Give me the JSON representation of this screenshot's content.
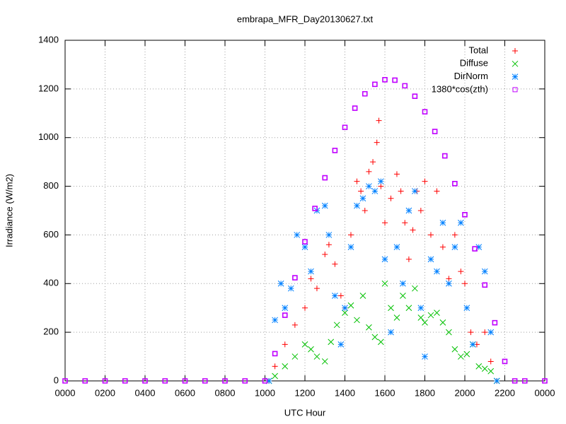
{
  "chart_data": {
    "type": "scatter",
    "title": "embrapa_MFR_Day20130627.txt",
    "xlabel": "UTC Hour",
    "ylabel": "Irradiance (W/m2)",
    "xlim": [
      0,
      24
    ],
    "xticks": [
      {
        "value": 0,
        "label": "0000"
      },
      {
        "value": 2,
        "label": "0200"
      },
      {
        "value": 4,
        "label": "0400"
      },
      {
        "value": 6,
        "label": "0600"
      },
      {
        "value": 8,
        "label": "0800"
      },
      {
        "value": 10,
        "label": "1000"
      },
      {
        "value": 12,
        "label": "1200"
      },
      {
        "value": 14,
        "label": "1400"
      },
      {
        "value": 16,
        "label": "1600"
      },
      {
        "value": 18,
        "label": "1800"
      },
      {
        "value": 20,
        "label": "2000"
      },
      {
        "value": 22,
        "label": "2200"
      },
      {
        "value": 24,
        "label": "0000"
      }
    ],
    "ylim": [
      0,
      1400
    ],
    "yticks": [
      0,
      200,
      400,
      600,
      800,
      1000,
      1200,
      1400
    ],
    "grid": true,
    "legend": "top-right",
    "series": [
      {
        "name": "Total",
        "color": "#ff0000",
        "marker": "plus",
        "x": [
          10.2,
          10.5,
          11,
          11.5,
          12,
          12.3,
          12.6,
          13,
          13.2,
          13.5,
          13.8,
          14,
          14.3,
          14.6,
          14.8,
          15,
          15.2,
          15.4,
          15.6,
          15.7,
          15.8,
          16,
          16.3,
          16.6,
          16.8,
          17,
          17.2,
          17.4,
          17.6,
          17.8,
          18,
          18.3,
          18.6,
          18.9,
          19.2,
          19.5,
          19.8,
          20,
          20.3,
          20.6,
          21,
          21.3,
          21.6
        ],
        "values": [
          0,
          60,
          150,
          230,
          300,
          420,
          380,
          520,
          560,
          480,
          350,
          300,
          600,
          820,
          780,
          700,
          860,
          900,
          980,
          1070,
          800,
          650,
          750,
          850,
          780,
          650,
          500,
          620,
          780,
          700,
          820,
          600,
          780,
          550,
          420,
          600,
          450,
          400,
          200,
          150,
          200,
          80,
          0
        ]
      },
      {
        "name": "Diffuse",
        "color": "#00c000",
        "marker": "cross",
        "x": [
          10.2,
          10.5,
          11,
          11.5,
          12,
          12.3,
          12.6,
          13,
          13.3,
          13.6,
          14,
          14.3,
          14.6,
          14.9,
          15.2,
          15.5,
          15.8,
          16,
          16.3,
          16.6,
          16.9,
          17.2,
          17.5,
          17.8,
          18,
          18.3,
          18.6,
          18.9,
          19.2,
          19.5,
          19.8,
          20.1,
          20.4,
          20.7,
          21,
          21.3,
          21.6
        ],
        "values": [
          0,
          20,
          60,
          100,
          150,
          130,
          100,
          80,
          160,
          230,
          280,
          310,
          250,
          350,
          220,
          180,
          160,
          400,
          300,
          260,
          350,
          300,
          380,
          260,
          240,
          270,
          280,
          240,
          200,
          130,
          100,
          110,
          150,
          60,
          50,
          40,
          0
        ]
      },
      {
        "name": "DirNorm",
        "color": "#0080ff",
        "marker": "star",
        "x": [
          10.2,
          10.5,
          10.8,
          11,
          11.3,
          11.6,
          12,
          12.3,
          12.6,
          13,
          13.2,
          13.5,
          13.8,
          14,
          14.3,
          14.6,
          14.9,
          15.2,
          15.5,
          15.8,
          16,
          16.3,
          16.6,
          16.9,
          17.2,
          17.5,
          17.8,
          18,
          18.3,
          18.6,
          18.9,
          19.2,
          19.5,
          19.8,
          20.1,
          20.4,
          20.7,
          21,
          21.3,
          21.6
        ],
        "values": [
          0,
          250,
          400,
          300,
          380,
          600,
          550,
          450,
          700,
          720,
          600,
          350,
          150,
          300,
          550,
          720,
          750,
          800,
          780,
          820,
          500,
          200,
          550,
          400,
          700,
          780,
          300,
          100,
          500,
          450,
          650,
          400,
          550,
          650,
          300,
          150,
          550,
          450,
          200,
          0
        ]
      },
      {
        "name": "1380*cos(zth)",
        "color": "#c000ff",
        "marker": "square",
        "x": [
          0,
          1,
          2,
          3,
          4,
          5,
          6,
          7,
          8,
          9,
          10,
          10.5,
          11,
          11.5,
          12,
          12.5,
          13,
          13.5,
          14,
          14.5,
          15,
          15.5,
          16,
          16.5,
          17,
          17.5,
          18,
          18.5,
          19,
          19.5,
          20,
          20.5,
          21,
          21.5,
          22,
          22.5,
          23,
          24
        ],
        "values": [
          0,
          0,
          0,
          0,
          0,
          0,
          0,
          0,
          0,
          0,
          0,
          112,
          270,
          424,
          572,
          709,
          835,
          947,
          1042,
          1121,
          1180,
          1219,
          1238,
          1236,
          1213,
          1170,
          1106,
          1025,
          925,
          811,
          683,
          543,
          394,
          239,
          80,
          0,
          0,
          0
        ]
      }
    ]
  }
}
